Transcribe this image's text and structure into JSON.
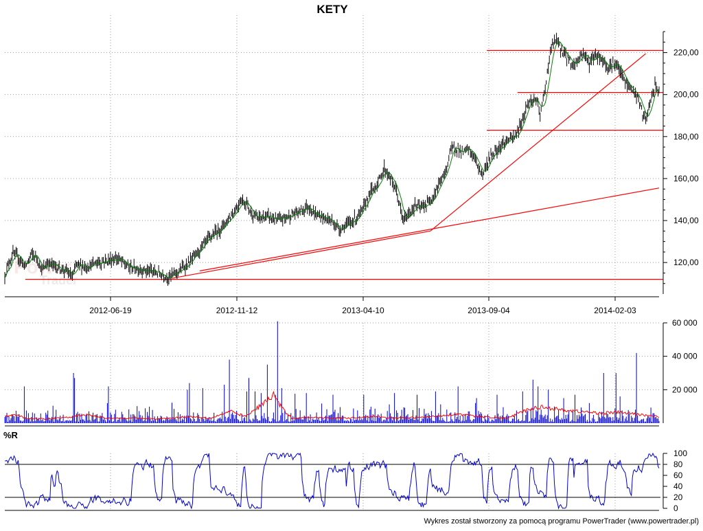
{
  "chart_data": [
    {
      "type": "candlestick",
      "title": "KETY",
      "ylim": [
        105,
        230
      ],
      "y_ticks": [
        120,
        140,
        160,
        180,
        200,
        220
      ],
      "y_tick_labels": [
        "120,00",
        "140,00",
        "160,00",
        "180,00",
        "200,00",
        "220,00"
      ],
      "x_tick_labels": [
        "2012-06-19",
        "2012-11-12",
        "2013-04-10",
        "2013-09-04",
        "2014-02-03"
      ],
      "grid": true,
      "watermark": "PowerTrader",
      "colors": {
        "bars": "#000000",
        "average": "#008000",
        "trendlines": "#ff0000"
      },
      "price_path": [
        [
          0,
          114
        ],
        [
          4,
          120
        ],
        [
          8,
          124
        ],
        [
          14,
          122
        ],
        [
          20,
          118
        ],
        [
          26,
          124
        ],
        [
          32,
          122
        ],
        [
          36,
          116
        ],
        [
          42,
          120
        ],
        [
          50,
          118
        ],
        [
          60,
          116
        ],
        [
          66,
          113
        ],
        [
          70,
          119
        ],
        [
          80,
          118
        ],
        [
          90,
          120
        ],
        [
          100,
          121
        ],
        [
          110,
          122
        ],
        [
          120,
          118
        ],
        [
          130,
          117
        ],
        [
          140,
          116
        ],
        [
          150,
          115
        ],
        [
          160,
          113
        ],
        [
          170,
          116
        ],
        [
          180,
          120
        ],
        [
          190,
          126
        ],
        [
          200,
          132
        ],
        [
          210,
          136
        ],
        [
          220,
          142
        ],
        [
          226,
          146
        ],
        [
          230,
          150
        ],
        [
          236,
          148
        ],
        [
          240,
          144
        ],
        [
          246,
          141
        ],
        [
          256,
          142
        ],
        [
          266,
          140
        ],
        [
          276,
          142
        ],
        [
          286,
          144
        ],
        [
          296,
          147
        ],
        [
          302,
          143
        ],
        [
          308,
          142
        ],
        [
          318,
          140
        ],
        [
          326,
          136
        ],
        [
          334,
          138
        ],
        [
          342,
          141
        ],
        [
          348,
          144
        ],
        [
          356,
          153
        ],
        [
          364,
          158
        ],
        [
          370,
          165
        ],
        [
          376,
          160
        ],
        [
          382,
          154
        ],
        [
          388,
          140
        ],
        [
          394,
          143
        ],
        [
          400,
          147
        ],
        [
          406,
          146
        ],
        [
          412,
          148
        ],
        [
          418,
          152
        ],
        [
          424,
          158
        ],
        [
          430,
          163
        ],
        [
          434,
          173
        ],
        [
          440,
          175
        ],
        [
          446,
          172
        ],
        [
          452,
          174
        ],
        [
          458,
          170
        ],
        [
          462,
          165
        ],
        [
          466,
          162
        ],
        [
          470,
          167
        ],
        [
          476,
          172
        ],
        [
          482,
          175
        ],
        [
          490,
          178
        ],
        [
          498,
          180
        ],
        [
          504,
          187
        ],
        [
          510,
          196
        ],
        [
          518,
          198
        ],
        [
          522,
          190
        ],
        [
          526,
          200
        ],
        [
          530,
          214
        ],
        [
          534,
          224
        ],
        [
          538,
          226
        ],
        [
          542,
          222
        ],
        [
          548,
          218
        ],
        [
          554,
          214
        ],
        [
          558,
          216
        ],
        [
          564,
          220
        ],
        [
          570,
          215
        ],
        [
          576,
          219
        ],
        [
          582,
          217
        ],
        [
          588,
          213
        ],
        [
          594,
          215
        ],
        [
          600,
          211
        ],
        [
          606,
          205
        ],
        [
          612,
          202
        ],
        [
          618,
          198
        ],
        [
          622,
          190
        ],
        [
          626,
          188
        ],
        [
          630,
          198
        ],
        [
          634,
          204
        ],
        [
          638,
          202
        ]
      ],
      "horizontal_levels": [
        {
          "y": 112,
          "x_start": 20
        },
        {
          "y": 183,
          "x_start": 470
        },
        {
          "y": 201,
          "x_start": 500
        },
        {
          "y": 221,
          "x_start": 470
        }
      ],
      "trend_lines": [
        {
          "from": [
            163,
            112.5
          ],
          "to": [
            415,
            135
          ]
        },
        {
          "from": [
            190,
            116
          ],
          "to": [
            638,
            155.5
          ]
        },
        {
          "from": [
            415,
            135
          ],
          "to": [
            625,
            219.5
          ]
        }
      ]
    },
    {
      "type": "bar",
      "title": "",
      "ylim": [
        0,
        60000
      ],
      "y_ticks": [
        20000,
        40000,
        60000
      ],
      "y_tick_labels": [
        "20 000",
        "40 000",
        "60 000"
      ],
      "colors": {
        "bars": "#0000cc",
        "average": "#ff0000"
      },
      "spikes": [
        [
          19,
          22000
        ],
        [
          67,
          30000
        ],
        [
          68,
          27000
        ],
        [
          101,
          22000
        ],
        [
          178,
          20000
        ],
        [
          180,
          24000
        ],
        [
          193,
          21000
        ],
        [
          214,
          23000
        ],
        [
          219,
          38000
        ],
        [
          236,
          19000
        ],
        [
          238,
          27000
        ],
        [
          244,
          19000
        ],
        [
          250,
          18000
        ],
        [
          256,
          35000
        ],
        [
          264,
          17000
        ],
        [
          266,
          61000
        ],
        [
          270,
          21000
        ],
        [
          294,
          18000
        ],
        [
          320,
          17000
        ],
        [
          350,
          17000
        ],
        [
          380,
          18000
        ],
        [
          402,
          17000
        ],
        [
          420,
          19000
        ],
        [
          442,
          22000
        ],
        [
          460,
          15000
        ],
        [
          480,
          17000
        ],
        [
          505,
          19000
        ],
        [
          515,
          26000
        ],
        [
          520,
          22000
        ],
        [
          530,
          20000
        ],
        [
          545,
          15000
        ],
        [
          556,
          17000
        ],
        [
          570,
          12000
        ],
        [
          584,
          30000
        ],
        [
          596,
          30000
        ],
        [
          600,
          16000
        ],
        [
          616,
          42000
        ]
      ],
      "average_path": [
        [
          0,
          4000
        ],
        [
          10,
          5000
        ],
        [
          20,
          3000
        ],
        [
          40,
          2500
        ],
        [
          67,
          4000
        ],
        [
          80,
          5000
        ],
        [
          100,
          3000
        ],
        [
          130,
          3000
        ],
        [
          150,
          2500
        ],
        [
          180,
          4000
        ],
        [
          200,
          3000
        ],
        [
          220,
          7000
        ],
        [
          235,
          4000
        ],
        [
          255,
          13000
        ],
        [
          262,
          17000
        ],
        [
          270,
          9000
        ],
        [
          280,
          3000
        ],
        [
          300,
          3500
        ],
        [
          330,
          3000
        ],
        [
          360,
          4000
        ],
        [
          380,
          3000
        ],
        [
          410,
          3500
        ],
        [
          440,
          5500
        ],
        [
          460,
          4000
        ],
        [
          490,
          3000
        ],
        [
          510,
          8000
        ],
        [
          525,
          10000
        ],
        [
          540,
          8000
        ],
        [
          560,
          7000
        ],
        [
          580,
          6000
        ],
        [
          600,
          6500
        ],
        [
          620,
          5000
        ],
        [
          638,
          4000
        ]
      ]
    },
    {
      "type": "line",
      "title": "%R",
      "ylim": [
        0,
        100
      ],
      "y_ticks": [
        0,
        20,
        40,
        60,
        80,
        100
      ],
      "y_tick_labels": [
        "0",
        "20",
        "40",
        "60",
        "80",
        "100"
      ],
      "reference_levels": [
        20,
        80
      ],
      "colors": {
        "line": "#0000cc"
      }
    }
  ],
  "footer": {
    "credit": "Wykres został stworzony za pomocą programu PowerTrader (www.powertrader.pl)"
  }
}
